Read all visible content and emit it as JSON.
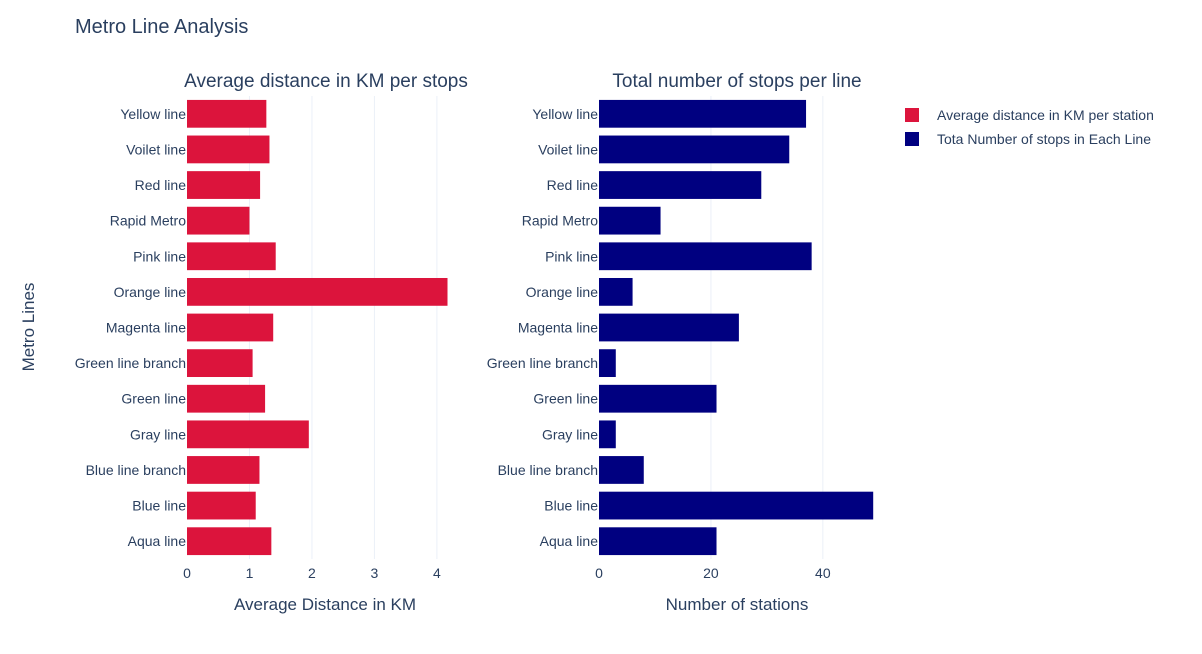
{
  "chart": {
    "title": "Metro Line Analysis",
    "y_axis_title": "Metro Lines"
  },
  "chart_data": [
    {
      "type": "bar",
      "orientation": "horizontal",
      "title": "Average distance in KM per stops",
      "xlabel": "Average Distance in KM",
      "ylabel": "Metro Lines",
      "categories": [
        "Yellow line",
        "Voilet line",
        "Red line",
        "Rapid Metro",
        "Pink line",
        "Orange line",
        "Magenta line",
        "Green line branch",
        "Green line",
        "Gray line",
        "Blue line branch",
        "Blue line",
        "Aqua line"
      ],
      "series": [
        {
          "name": "Average distance in KM per station",
          "color": "#dc143c",
          "values": [
            1.27,
            1.32,
            1.17,
            1.0,
            1.42,
            4.17,
            1.38,
            1.05,
            1.25,
            1.95,
            1.16,
            1.1,
            1.35
          ]
        }
      ],
      "xlim": [
        0,
        4.45
      ],
      "xticks": [
        0,
        1,
        2,
        3,
        4
      ],
      "grid": true
    },
    {
      "type": "bar",
      "orientation": "horizontal",
      "title": "Total number of stops per line",
      "xlabel": "Number of stations",
      "categories": [
        "Yellow line",
        "Voilet line",
        "Red line",
        "Rapid Metro",
        "Pink line",
        "Orange line",
        "Magenta line",
        "Green line branch",
        "Green line",
        "Gray line",
        "Blue line branch",
        "Blue line",
        "Aqua line"
      ],
      "series": [
        {
          "name": "Tota Number of stops in Each Line",
          "color": "#000080",
          "values": [
            37,
            34,
            29,
            11,
            38,
            6,
            25,
            3,
            21,
            3,
            8,
            49,
            21
          ]
        }
      ],
      "xlim": [
        0,
        49.5
      ],
      "xticks": [
        0,
        20,
        40
      ],
      "grid": true
    }
  ],
  "legend": {
    "placement": "top-right",
    "items": [
      {
        "label": "Average distance in KM per station",
        "color": "#dc143c"
      },
      {
        "label": "Tota Number of stops in Each Line",
        "color": "#000080"
      }
    ]
  }
}
